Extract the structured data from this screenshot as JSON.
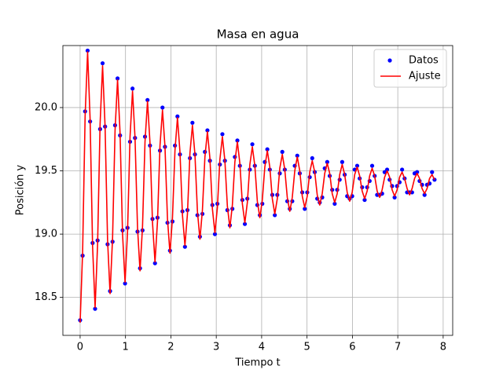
{
  "chart_data": {
    "type": "line",
    "title": "Masa en agua",
    "x_label": "Tiempo t",
    "y_label": "Posición y",
    "xlim": [
      -0.38,
      8.21
    ],
    "ylim": [
      18.2,
      20.49
    ],
    "xticks": [
      0,
      1,
      2,
      3,
      4,
      5,
      6,
      7,
      8
    ],
    "yticks": [
      18.5,
      {
        "value": 19.0,
        "label": "19.0"
      },
      19.5,
      {
        "value": 20.0,
        "label": "20.0"
      }
    ],
    "grid": true,
    "legend": "upper right",
    "x": [
      0,
      0.055,
      0.11,
      0.165,
      0.22,
      0.275,
      0.33,
      0.385,
      0.44,
      0.495,
      0.55,
      0.605,
      0.66,
      0.715,
      0.77,
      0.825,
      0.88,
      0.935,
      0.99,
      1.045,
      1.1,
      1.155,
      1.21,
      1.265,
      1.32,
      1.375,
      1.43,
      1.485,
      1.54,
      1.595,
      1.65,
      1.705,
      1.76,
      1.815,
      1.87,
      1.925,
      1.98,
      2.035,
      2.09,
      2.145,
      2.2,
      2.255,
      2.31,
      2.365,
      2.42,
      2.475,
      2.53,
      2.585,
      2.64,
      2.695,
      2.75,
      2.805,
      2.86,
      2.915,
      2.97,
      3.025,
      3.08,
      3.135,
      3.19,
      3.245,
      3.3,
      3.355,
      3.41,
      3.465,
      3.52,
      3.575,
      3.63,
      3.685,
      3.74,
      3.795,
      3.85,
      3.905,
      3.96,
      4.015,
      4.07,
      4.125,
      4.18,
      4.235,
      4.29,
      4.345,
      4.4,
      4.455,
      4.51,
      4.565,
      4.62,
      4.675,
      4.73,
      4.785,
      4.84,
      4.895,
      4.95,
      5.005,
      5.06,
      5.115,
      5.17,
      5.225,
      5.28,
      5.335,
      5.39,
      5.445,
      5.5,
      5.555,
      5.61,
      5.665,
      5.72,
      5.775,
      5.83,
      5.885,
      5.94,
      5.995,
      6.05,
      6.105,
      6.16,
      6.215,
      6.27,
      6.325,
      6.38,
      6.435,
      6.49,
      6.545,
      6.6,
      6.655,
      6.71,
      6.765,
      6.82,
      6.875,
      6.93,
      6.985,
      7.04,
      7.095,
      7.15,
      7.205,
      7.26,
      7.315,
      7.37,
      7.425,
      7.48,
      7.535,
      7.59,
      7.645,
      7.7,
      7.755,
      7.81
    ],
    "series": [
      {
        "name": "Datos",
        "type": "scatter",
        "color": "#0000ff",
        "values": [
          18.32,
          18.83,
          19.97,
          20.45,
          19.89,
          18.93,
          18.41,
          18.95,
          19.83,
          20.35,
          19.85,
          18.92,
          18.55,
          18.94,
          19.86,
          20.23,
          19.78,
          19.03,
          18.61,
          19.05,
          19.73,
          20.15,
          19.76,
          19.02,
          18.73,
          19.03,
          19.77,
          20.06,
          19.7,
          19.12,
          18.77,
          19.13,
          19.66,
          20.0,
          19.69,
          19.09,
          18.87,
          19.1,
          19.7,
          19.93,
          19.63,
          19.18,
          18.9,
          19.19,
          19.6,
          19.88,
          19.63,
          19.15,
          18.98,
          19.16,
          19.65,
          19.82,
          19.58,
          19.23,
          19.0,
          19.24,
          19.55,
          19.79,
          19.58,
          19.19,
          19.07,
          19.2,
          19.61,
          19.74,
          19.54,
          19.27,
          19.08,
          19.28,
          19.51,
          19.71,
          19.54,
          19.23,
          19.15,
          19.24,
          19.57,
          19.67,
          19.51,
          19.31,
          19.15,
          19.31,
          19.48,
          19.65,
          19.51,
          19.26,
          19.2,
          19.26,
          19.54,
          19.62,
          19.48,
          19.33,
          19.2,
          19.33,
          19.45,
          19.6,
          19.49,
          19.28,
          19.25,
          19.29,
          19.52,
          19.57,
          19.46,
          19.35,
          19.24,
          19.35,
          19.43,
          19.57,
          19.47,
          19.3,
          19.28,
          19.3,
          19.51,
          19.54,
          19.44,
          19.37,
          19.27,
          19.37,
          19.42,
          19.54,
          19.46,
          19.31,
          19.31,
          19.32,
          19.49,
          19.51,
          19.43,
          19.38,
          19.29,
          19.38,
          19.41,
          19.51,
          19.44,
          19.33,
          19.33,
          19.33,
          19.48,
          19.49,
          19.42,
          19.39,
          19.31,
          19.39,
          19.4,
          19.49,
          19.43
        ]
      },
      {
        "name": "Ajuste",
        "type": "line",
        "color": "#ff0000",
        "values": [
          18.3,
          18.86,
          19.93,
          20.44,
          19.91,
          18.9,
          18.42,
          18.92,
          19.87,
          20.33,
          19.85,
          18.95,
          18.53,
          18.97,
          19.82,
          20.22,
          19.8,
          19.0,
          18.62,
          19.02,
          19.77,
          20.13,
          19.76,
          19.05,
          18.71,
          19.06,
          19.73,
          20.05,
          19.72,
          19.09,
          18.78,
          19.1,
          19.7,
          19.98,
          19.69,
          19.12,
          18.85,
          19.13,
          19.66,
          19.92,
          19.65,
          19.15,
          18.91,
          19.16,
          19.64,
          19.86,
          19.63,
          19.18,
          18.96,
          19.19,
          19.61,
          19.81,
          19.6,
          19.2,
          19.01,
          19.21,
          19.59,
          19.77,
          19.58,
          19.22,
          19.05,
          19.23,
          19.57,
          19.73,
          19.56,
          19.24,
          19.09,
          19.25,
          19.55,
          19.69,
          19.54,
          19.26,
          19.13,
          19.27,
          19.53,
          19.66,
          19.53,
          19.28,
          19.16,
          19.28,
          19.52,
          19.63,
          19.51,
          19.29,
          19.18,
          19.29,
          19.5,
          19.61,
          19.5,
          19.3,
          19.21,
          19.3,
          19.49,
          19.58,
          19.49,
          19.31,
          19.23,
          19.32,
          19.48,
          19.56,
          19.48,
          19.32,
          19.25,
          19.32,
          19.47,
          19.55,
          19.47,
          19.33,
          19.26,
          19.33,
          19.47,
          19.53,
          19.46,
          19.34,
          19.28,
          19.34,
          19.46,
          19.52,
          19.46,
          19.34,
          19.29,
          19.35,
          19.45,
          19.5,
          19.45,
          19.35,
          19.3,
          19.35,
          19.45,
          19.49,
          19.44,
          19.36,
          19.31,
          19.36,
          19.44,
          19.48,
          19.44,
          19.36,
          19.32,
          19.36,
          19.44,
          19.47,
          19.43
        ]
      }
    ]
  }
}
